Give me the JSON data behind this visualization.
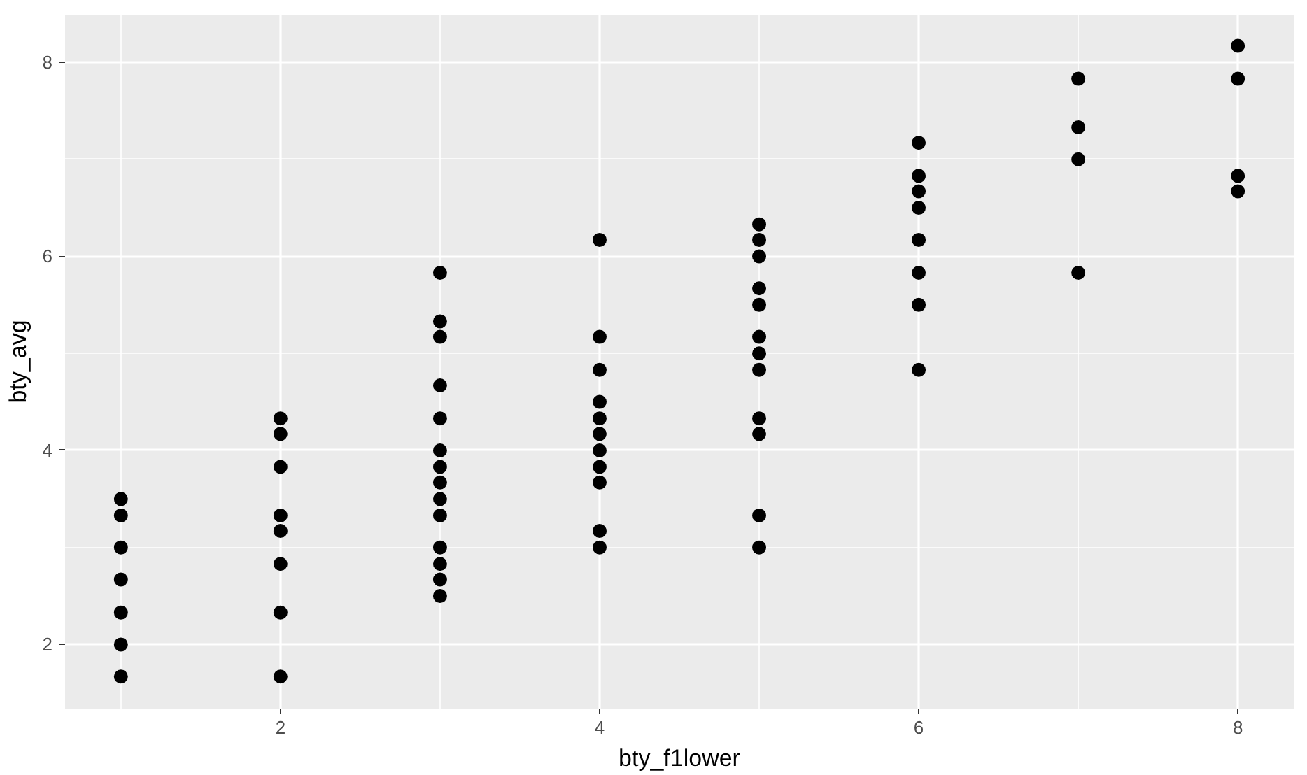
{
  "chart_data": {
    "type": "scatter",
    "xlabel": "bty_f1lower",
    "ylabel": "bty_avg",
    "x": [
      1,
      1,
      1,
      1,
      1,
      1,
      1,
      2,
      2,
      2,
      2,
      2,
      2,
      2,
      2,
      3,
      3,
      3,
      3,
      3,
      3,
      3,
      3,
      3,
      3,
      3,
      3,
      3,
      3,
      4,
      4,
      4,
      4,
      4,
      4,
      4,
      4,
      4,
      4,
      4,
      5,
      5,
      5,
      5,
      5,
      5,
      5,
      5,
      5,
      5,
      5,
      5,
      6,
      6,
      6,
      6,
      6,
      6,
      6,
      6,
      7,
      7,
      7,
      7,
      8,
      8,
      8,
      8
    ],
    "values": [
      3.5,
      3.33,
      3.0,
      2.67,
      2.33,
      2.0,
      1.67,
      4.33,
      4.17,
      3.83,
      3.33,
      3.17,
      2.83,
      2.33,
      1.67,
      5.83,
      5.33,
      5.17,
      4.67,
      4.33,
      4.0,
      3.83,
      3.67,
      3.5,
      3.33,
      3.0,
      2.83,
      2.67,
      2.5,
      6.17,
      5.17,
      4.83,
      4.5,
      4.33,
      4.17,
      4.0,
      3.83,
      3.67,
      3.17,
      3.0,
      6.33,
      6.17,
      6.0,
      5.67,
      5.5,
      5.17,
      5.0,
      4.83,
      4.33,
      4.17,
      3.33,
      3.0,
      7.17,
      6.83,
      6.67,
      6.5,
      6.17,
      5.83,
      5.5,
      4.83,
      7.83,
      7.33,
      7.0,
      5.83,
      8.17,
      7.83,
      6.83,
      6.67
    ],
    "color": "#000000",
    "marker": "circle",
    "grid": true,
    "xlim": [
      0.65,
      8.35
    ],
    "ylim": [
      1.34,
      8.49
    ],
    "xticks": [
      2,
      4,
      6,
      8
    ],
    "yticks": [
      2,
      4,
      6,
      8
    ]
  }
}
